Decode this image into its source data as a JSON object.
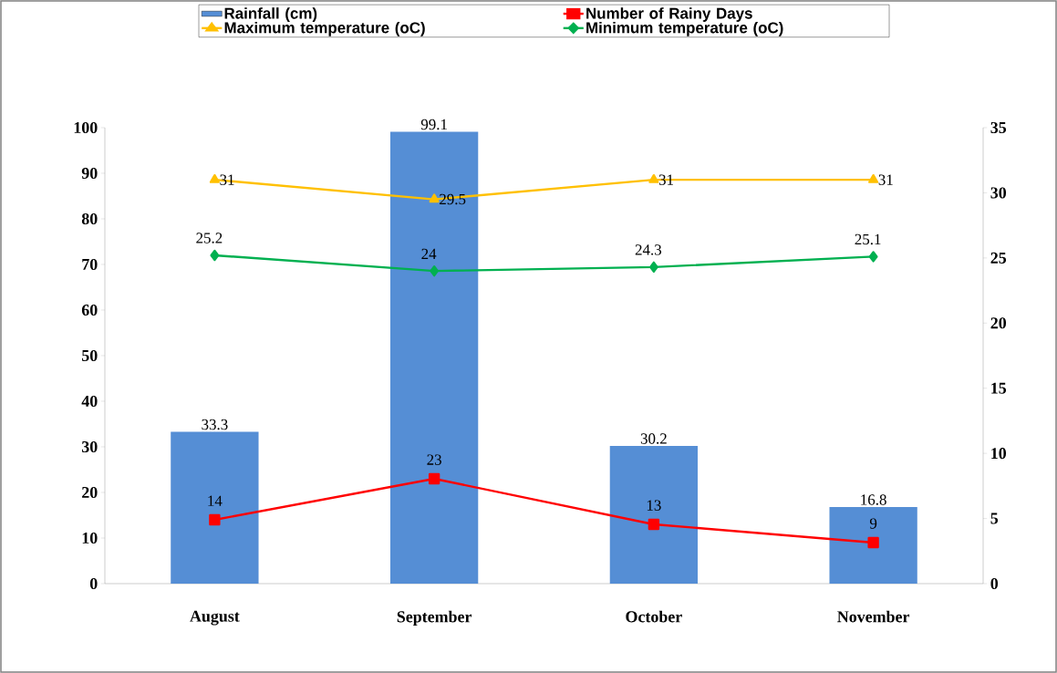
{
  "chart_data": {
    "type": "bar",
    "categories": [
      "August",
      "September",
      "October",
      "November"
    ],
    "series": [
      {
        "name": "Rainfall (cm)",
        "color": "#558ed5",
        "values": [
          33.3,
          99.1,
          30.2,
          16.8
        ]
      },
      {
        "name": "Number of Rainy Days",
        "type": "line",
        "color": "#ff0000",
        "marker": "square",
        "values": [
          14,
          23,
          13,
          9
        ]
      },
      {
        "name": "Maximum temperature (oC)",
        "type": "line",
        "color": "#ffc000",
        "marker": "triangle",
        "axis": "y2",
        "values": [
          31,
          29.5,
          31,
          31
        ]
      },
      {
        "name": "Minimum temperature (oC)",
        "type": "line",
        "color": "#00b050",
        "marker": "diamond",
        "axis": "y2",
        "values": [
          25.2,
          24,
          24.3,
          25.1
        ]
      }
    ],
    "ylim": [
      0,
      100
    ],
    "yticks": [
      0,
      10,
      20,
      30,
      40,
      50,
      60,
      70,
      80,
      90,
      100
    ],
    "y2lim": [
      0,
      35
    ],
    "y2ticks": [
      0,
      5,
      10,
      15,
      20,
      25,
      30,
      35
    ],
    "legend": "top",
    "data_labels": true
  }
}
